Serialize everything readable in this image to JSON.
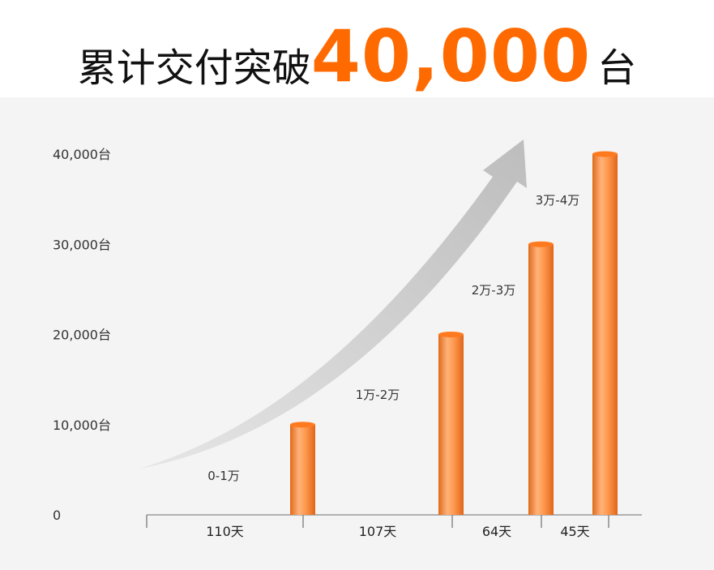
{
  "title": {
    "prefix": "累计交付突破",
    "number": "40,000",
    "suffix": "台"
  },
  "colors": {
    "accent": "#ff6a00",
    "bar_light": "#ffb27a",
    "bar_mid": "#ff8c3a",
    "bar_dark": "#e06a1a",
    "arrow": "#c8c8c8",
    "background": "#f4f4f4"
  },
  "chart_data": {
    "type": "bar",
    "ylim": [
      0,
      40000
    ],
    "y_ticks": [
      {
        "value": 0,
        "label": "0"
      },
      {
        "value": 10000,
        "label": "10,000台"
      },
      {
        "value": 20000,
        "label": "20,000台"
      },
      {
        "value": 30000,
        "label": "30,000台"
      },
      {
        "value": 40000,
        "label": "40,000台"
      }
    ],
    "intervals": [
      {
        "duration": "110天",
        "range_label": "0-1万",
        "cumulative": 10000
      },
      {
        "duration": "107天",
        "range_label": "1万-2万",
        "cumulative": 20000
      },
      {
        "duration": "64天",
        "range_label": "2万-3万",
        "cumulative": 30000
      },
      {
        "duration": "45天",
        "range_label": "3万-4万",
        "cumulative": 40000
      }
    ],
    "trend_arrow": true
  }
}
